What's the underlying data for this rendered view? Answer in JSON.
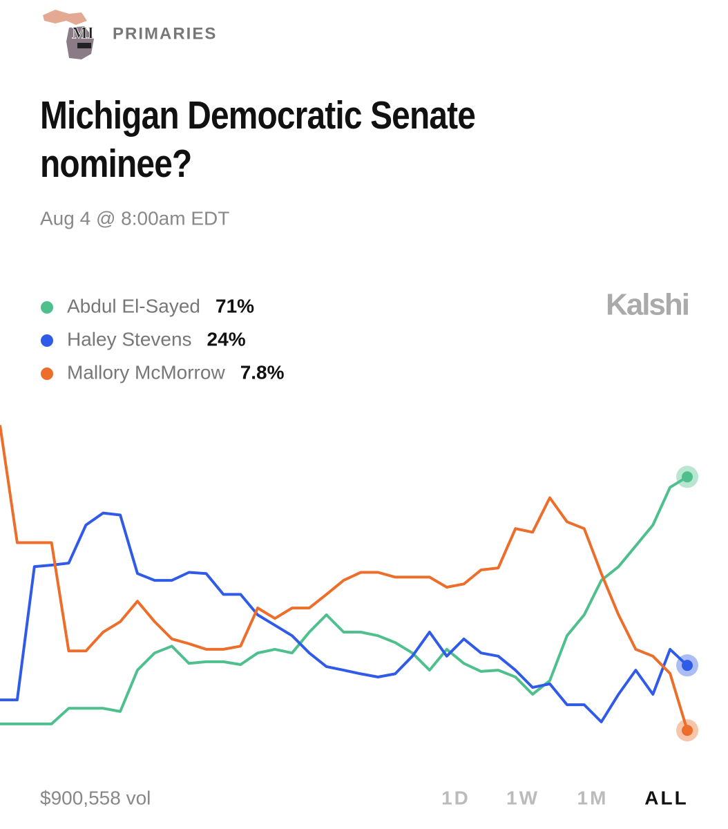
{
  "header": {
    "icon_text": "MI",
    "category": "PRIMARIES"
  },
  "chart_data": {
    "type": "line",
    "title": "Michigan Democratic Senate nominee?",
    "subtitle": "Aug 4 @ 8:00am EDT",
    "brand": "Kalshi",
    "ylim": [
      0,
      90
    ],
    "series": [
      {
        "name": "Abdul El-Sayed",
        "color": "#4fc08d",
        "legend_label": "71%",
        "values": [
          9.4,
          9.4,
          9.4,
          9.4,
          13.3,
          13.3,
          13.3,
          12.5,
          22.8,
          27.1,
          28.8,
          24.5,
          24.9,
          24.9,
          24.2,
          27.1,
          28,
          27.1,
          32.3,
          36.6,
          32.3,
          32.3,
          31.4,
          29.7,
          27.1,
          22.8,
          28,
          24.5,
          22.5,
          22.8,
          21.1,
          16.8,
          20.2,
          31.4,
          36.6,
          45.2,
          48.6,
          53.8,
          59,
          68.4,
          71
        ]
      },
      {
        "name": "Haley Stevens",
        "color": "#2f5be8",
        "legend_label": "24%",
        "values": [
          15.4,
          15.4,
          48.6,
          49,
          49.5,
          59,
          62,
          61.5,
          46.9,
          45.2,
          45.2,
          47.2,
          46.9,
          41.7,
          41.7,
          36.6,
          34,
          31.4,
          27.1,
          23.7,
          22.8,
          21.9,
          21.1,
          21.9,
          26.3,
          32.3,
          26.3,
          30.6,
          27.1,
          26.3,
          22.8,
          18.5,
          19.4,
          14.2,
          14.2,
          9.9,
          16.8,
          22.8,
          16.8,
          28,
          24
        ]
      },
      {
        "name": "Mallory McMorrow",
        "color": "#ec6e2a",
        "legend_label": "7.8%",
        "values": [
          83.9,
          54.6,
          54.6,
          54.6,
          27.6,
          27.6,
          32.3,
          34.9,
          40,
          34.9,
          30.6,
          29.4,
          28,
          28,
          28.8,
          38.3,
          35.7,
          38.3,
          38.3,
          41.7,
          45.2,
          47.2,
          47.2,
          46,
          46,
          46,
          43.5,
          44.3,
          47.8,
          48.3,
          58.1,
          57.2,
          65.8,
          59.8,
          58.1,
          46.9,
          36.6,
          28,
          26.3,
          22,
          7.8
        ]
      }
    ]
  },
  "footer": {
    "volume": "$900,558 vol",
    "ranges": [
      "1D",
      "1W",
      "1M",
      "ALL"
    ],
    "active_range": 3
  }
}
